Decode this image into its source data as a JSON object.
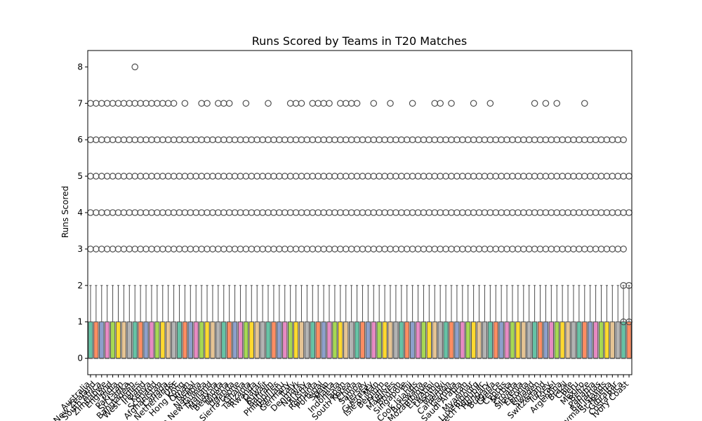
{
  "chart_data": {
    "type": "box",
    "title": "Runs Scored by Teams in T20 Matches",
    "xlabel": "",
    "ylabel": "Runs Scored",
    "ylim": [
      -0.45,
      8.45
    ],
    "yticks": [
      0,
      1,
      2,
      3,
      4,
      5,
      6,
      7,
      8
    ],
    "grid": false,
    "legend": "none",
    "palette": [
      "#66c2a5",
      "#fc8d62",
      "#8da0cb",
      "#e78ac3",
      "#a6d854",
      "#ffd92f",
      "#e5c494",
      "#b3b3b3"
    ],
    "box_stats": {
      "q1": 0,
      "median": 0,
      "q3": 1,
      "whisker_low": 0,
      "whisker_high": 2
    },
    "categories": [
      "Australia",
      "New Zealand",
      "South Africa",
      "Zimbabwe",
      "England",
      "India",
      "Pakistan",
      "Sri Lanka",
      "Bangladesh",
      "West Indies",
      "Ireland",
      "Kenya",
      "Scotland",
      "Afghanistan",
      "Canada",
      "Netherlands",
      "UAE",
      "Hong Kong",
      "Oman",
      "Nepal",
      "Namibia",
      "Papua New Guinea",
      "Thailand",
      "Malaysia",
      "Bermuda",
      "Nigeria",
      "Uganda",
      "Sierra Leone",
      "Ghana",
      "Tanzania",
      "Rwanda",
      "Qatar",
      "Kuwait",
      "Bahrain",
      "Philippines",
      "Vanuatu",
      "Germany",
      "Italy",
      "Denmark",
      "Norway",
      "Austria",
      "Romania",
      "Portugal",
      "Spain",
      "Malta",
      "Indonesia",
      "Japan",
      "South Korea",
      "China",
      "Samoa",
      "Jersey",
      "Guernsey",
      "Isle of Man",
      "Belgium",
      "France",
      "Maldives",
      "Bhutan",
      "Singapore",
      "Fiji",
      "Cook Islands",
      "Botswana",
      "Mozambique",
      "Eswatini",
      "Lesotho",
      "Malawi",
      "Cameroon",
      "Gambia",
      "Saudi Arabia",
      "Iran",
      "Myanmar",
      "Luxembourg",
      "Czech Republic",
      "Hungary",
      "Bulgaria",
      "Greece",
      "Cyprus",
      "Serbia",
      "Croatia",
      "Slovenia",
      "Estonia",
      "Finland",
      "Sweden",
      "Switzerland",
      "Turkey",
      "Israel",
      "Argentina",
      "Brazil",
      "Chile",
      "Peru",
      "Mexico",
      "Belize",
      "Panama",
      "Bahamas",
      "Cayman Islands",
      "St Helena",
      "Gibraltar",
      "Costa Rica",
      "Ivory Coast"
    ],
    "outlier_levels": [
      3,
      4,
      5,
      6,
      7,
      8
    ],
    "outliers": [
      [
        3,
        4,
        5,
        6,
        7
      ],
      [
        3,
        4,
        5,
        6,
        7
      ],
      [
        3,
        4,
        5,
        6,
        7
      ],
      [
        3,
        4,
        5,
        6,
        7
      ],
      [
        3,
        4,
        5,
        6,
        7
      ],
      [
        3,
        4,
        5,
        6,
        7
      ],
      [
        3,
        4,
        5,
        6,
        7
      ],
      [
        3,
        4,
        5,
        6,
        7
      ],
      [
        3,
        4,
        5,
        6,
        7,
        8
      ],
      [
        3,
        4,
        5,
        6,
        7
      ],
      [
        3,
        4,
        5,
        6,
        7
      ],
      [
        3,
        4,
        5,
        6,
        7
      ],
      [
        3,
        4,
        5,
        6,
        7
      ],
      [
        3,
        4,
        5,
        6,
        7
      ],
      [
        3,
        4,
        5,
        6,
        7
      ],
      [
        3,
        4,
        5,
        6,
        7
      ],
      [
        3,
        4,
        5,
        6
      ],
      [
        3,
        4,
        5,
        6,
        7
      ],
      [
        3,
        4,
        5,
        6
      ],
      [
        3,
        4,
        5,
        6
      ],
      [
        3,
        4,
        5,
        6,
        7
      ],
      [
        3,
        4,
        5,
        6,
        7
      ],
      [
        3,
        4,
        5,
        6
      ],
      [
        3,
        4,
        5,
        6,
        7
      ],
      [
        3,
        4,
        5,
        6,
        7
      ],
      [
        3,
        4,
        5,
        6,
        7
      ],
      [
        3,
        4,
        5,
        6
      ],
      [
        3,
        4,
        5,
        6
      ],
      [
        3,
        4,
        5,
        6,
        7
      ],
      [
        3,
        4,
        5,
        6
      ],
      [
        3,
        4,
        5,
        6
      ],
      [
        3,
        4,
        5,
        6
      ],
      [
        3,
        4,
        5,
        6,
        7
      ],
      [
        3,
        4,
        5,
        6
      ],
      [
        3,
        4,
        5,
        6
      ],
      [
        3,
        4,
        5,
        6
      ],
      [
        3,
        4,
        5,
        6,
        7
      ],
      [
        3,
        4,
        5,
        6,
        7
      ],
      [
        3,
        4,
        5,
        6,
        7
      ],
      [
        3,
        4,
        5,
        6
      ],
      [
        3,
        4,
        5,
        6,
        7
      ],
      [
        3,
        4,
        5,
        6,
        7
      ],
      [
        3,
        4,
        5,
        6,
        7
      ],
      [
        3,
        4,
        5,
        6,
        7
      ],
      [
        3,
        4,
        5,
        6
      ],
      [
        3,
        4,
        5,
        6,
        7
      ],
      [
        3,
        4,
        5,
        6,
        7
      ],
      [
        3,
        4,
        5,
        6,
        7
      ],
      [
        3,
        4,
        5,
        6,
        7
      ],
      [
        3,
        4,
        5,
        6
      ],
      [
        3,
        4,
        5,
        6
      ],
      [
        3,
        4,
        5,
        6,
        7
      ],
      [
        3,
        4,
        5,
        6
      ],
      [
        3,
        4,
        5,
        6
      ],
      [
        3,
        4,
        5,
        6,
        7
      ],
      [
        3,
        4,
        5,
        6
      ],
      [
        3,
        4,
        5,
        6
      ],
      [
        3,
        4,
        5,
        6
      ],
      [
        3,
        4,
        5,
        6,
        7
      ],
      [
        3,
        4,
        5,
        6
      ],
      [
        3,
        4,
        5,
        6
      ],
      [
        3,
        4,
        5,
        6
      ],
      [
        3,
        4,
        5,
        6,
        7
      ],
      [
        3,
        4,
        5,
        6,
        7
      ],
      [
        3,
        4,
        5,
        6
      ],
      [
        3,
        4,
        5,
        6,
        7
      ],
      [
        3,
        4,
        5,
        6
      ],
      [
        3,
        4,
        5,
        6
      ],
      [
        3,
        4,
        5,
        6
      ],
      [
        3,
        4,
        5,
        6,
        7
      ],
      [
        3,
        4,
        5,
        6
      ],
      [
        3,
        4,
        5,
        6
      ],
      [
        3,
        4,
        5,
        6,
        7
      ],
      [
        3,
        4,
        5,
        6
      ],
      [
        3,
        4,
        5,
        6
      ],
      [
        3,
        4,
        5,
        6
      ],
      [
        3,
        4,
        5,
        6
      ],
      [
        3,
        4,
        5,
        6
      ],
      [
        3,
        4,
        5,
        6
      ],
      [
        3,
        4,
        5,
        6
      ],
      [
        3,
        4,
        5,
        6,
        7
      ],
      [
        3,
        4,
        5,
        6
      ],
      [
        3,
        4,
        5,
        6,
        7
      ],
      [
        3,
        4,
        5,
        6
      ],
      [
        3,
        4,
        5,
        6,
        7
      ],
      [
        3,
        4,
        5,
        6
      ],
      [
        3,
        4,
        5,
        6
      ],
      [
        3,
        4,
        5,
        6
      ],
      [
        3,
        4,
        5,
        6
      ],
      [
        3,
        4,
        5,
        6,
        7
      ],
      [
        3,
        4,
        5,
        6
      ],
      [
        3,
        4,
        5,
        6
      ],
      [
        3,
        4,
        5,
        6
      ],
      [
        3,
        4,
        5,
        6
      ],
      [
        3,
        4,
        5,
        6
      ],
      [
        3,
        4,
        5,
        6
      ],
      [
        1,
        2,
        3,
        4,
        5,
        6
      ],
      [
        1,
        2,
        4,
        5
      ]
    ]
  }
}
